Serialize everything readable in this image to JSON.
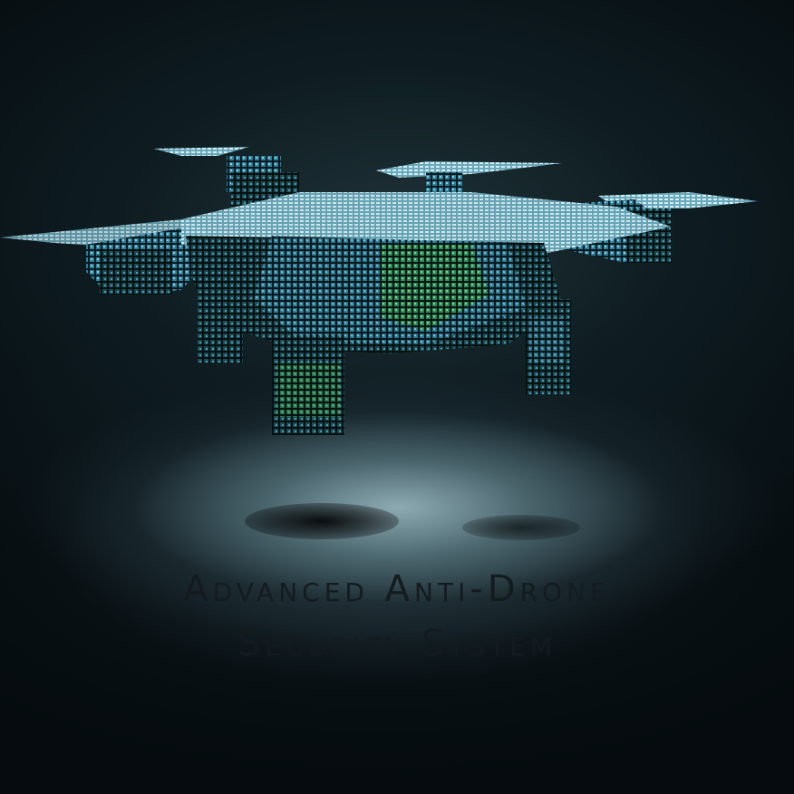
{
  "title": {
    "line1": "Advanced Anti-Drone",
    "line2": "Security System"
  },
  "colors": {
    "text": "#141b1f",
    "drone_primary": "#3ab0d0",
    "drone_accent": "#4ed24a",
    "background": "#050b0e"
  }
}
